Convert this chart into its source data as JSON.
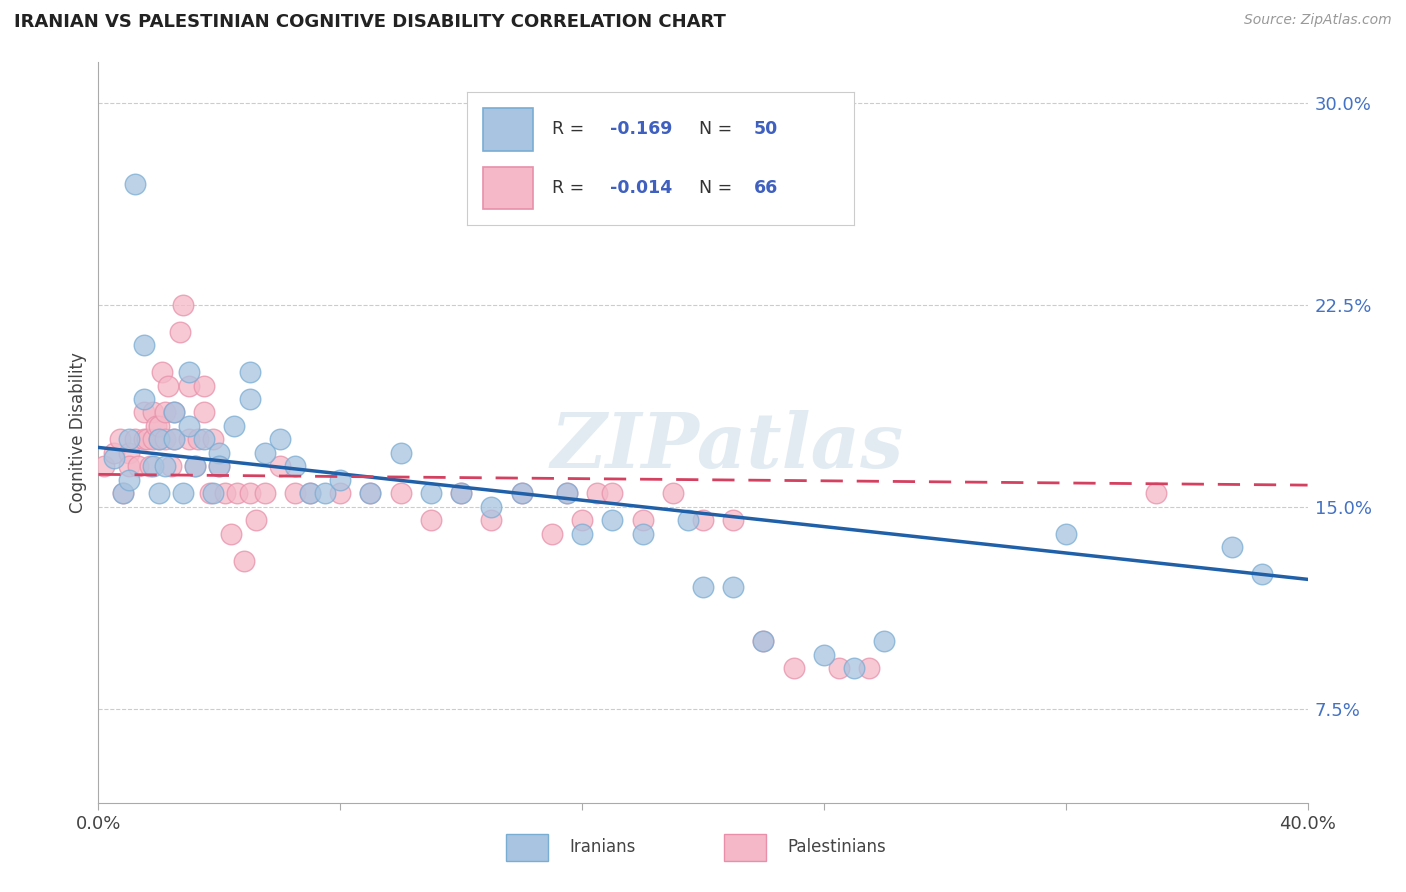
{
  "title": "IRANIAN VS PALESTINIAN COGNITIVE DISABILITY CORRELATION CHART",
  "source": "Source: ZipAtlas.com",
  "ylabel": "Cognitive Disability",
  "xlim": [
    0.0,
    0.4
  ],
  "ylim": [
    0.04,
    0.315
  ],
  "yticks": [
    0.075,
    0.15,
    0.225,
    0.3
  ],
  "ytick_labels": [
    "7.5%",
    "15.0%",
    "22.5%",
    "30.0%"
  ],
  "iranian_color": "#a8c4e0",
  "palestinian_color": "#f4b8c8",
  "iranian_edge": "#7aadd4",
  "palestinian_edge": "#e890aa",
  "line_iranian_color": "#2060a8",
  "line_palestinian_color": "#d44060",
  "R_iranian": -0.169,
  "N_iranian": 50,
  "R_palestinian": -0.014,
  "N_palestinian": 66,
  "watermark": "ZIPatlas",
  "background_color": "#ffffff",
  "grid_color": "#cccccc",
  "iranians_x": [
    0.005,
    0.008,
    0.01,
    0.01,
    0.012,
    0.015,
    0.015,
    0.018,
    0.02,
    0.02,
    0.022,
    0.025,
    0.025,
    0.028,
    0.03,
    0.03,
    0.032,
    0.035,
    0.038,
    0.04,
    0.04,
    0.045,
    0.05,
    0.05,
    0.055,
    0.06,
    0.065,
    0.07,
    0.075,
    0.08,
    0.09,
    0.1,
    0.11,
    0.12,
    0.13,
    0.14,
    0.155,
    0.16,
    0.17,
    0.18,
    0.195,
    0.2,
    0.21,
    0.22,
    0.24,
    0.25,
    0.26,
    0.32,
    0.375,
    0.385
  ],
  "iranians_y": [
    0.168,
    0.155,
    0.16,
    0.175,
    0.27,
    0.21,
    0.19,
    0.165,
    0.175,
    0.155,
    0.165,
    0.185,
    0.175,
    0.155,
    0.2,
    0.18,
    0.165,
    0.175,
    0.155,
    0.17,
    0.165,
    0.18,
    0.2,
    0.19,
    0.17,
    0.175,
    0.165,
    0.155,
    0.155,
    0.16,
    0.155,
    0.17,
    0.155,
    0.155,
    0.15,
    0.155,
    0.155,
    0.14,
    0.145,
    0.14,
    0.145,
    0.12,
    0.12,
    0.1,
    0.095,
    0.09,
    0.1,
    0.14,
    0.135,
    0.125
  ],
  "palestinians_x": [
    0.002,
    0.005,
    0.007,
    0.008,
    0.01,
    0.01,
    0.012,
    0.013,
    0.015,
    0.015,
    0.016,
    0.017,
    0.018,
    0.018,
    0.019,
    0.02,
    0.02,
    0.021,
    0.022,
    0.022,
    0.023,
    0.024,
    0.025,
    0.025,
    0.027,
    0.028,
    0.03,
    0.03,
    0.032,
    0.033,
    0.035,
    0.035,
    0.037,
    0.038,
    0.04,
    0.042,
    0.044,
    0.046,
    0.048,
    0.05,
    0.052,
    0.055,
    0.06,
    0.065,
    0.07,
    0.08,
    0.09,
    0.1,
    0.11,
    0.12,
    0.13,
    0.14,
    0.15,
    0.155,
    0.16,
    0.165,
    0.17,
    0.18,
    0.19,
    0.2,
    0.21,
    0.22,
    0.23,
    0.245,
    0.255,
    0.35
  ],
  "palestinians_y": [
    0.165,
    0.17,
    0.175,
    0.155,
    0.17,
    0.165,
    0.175,
    0.165,
    0.185,
    0.175,
    0.175,
    0.165,
    0.185,
    0.175,
    0.18,
    0.175,
    0.18,
    0.2,
    0.185,
    0.175,
    0.195,
    0.165,
    0.175,
    0.185,
    0.215,
    0.225,
    0.175,
    0.195,
    0.165,
    0.175,
    0.195,
    0.185,
    0.155,
    0.175,
    0.165,
    0.155,
    0.14,
    0.155,
    0.13,
    0.155,
    0.145,
    0.155,
    0.165,
    0.155,
    0.155,
    0.155,
    0.155,
    0.155,
    0.145,
    0.155,
    0.145,
    0.155,
    0.14,
    0.155,
    0.145,
    0.155,
    0.155,
    0.145,
    0.155,
    0.145,
    0.145,
    0.1,
    0.09,
    0.09,
    0.09,
    0.155
  ]
}
